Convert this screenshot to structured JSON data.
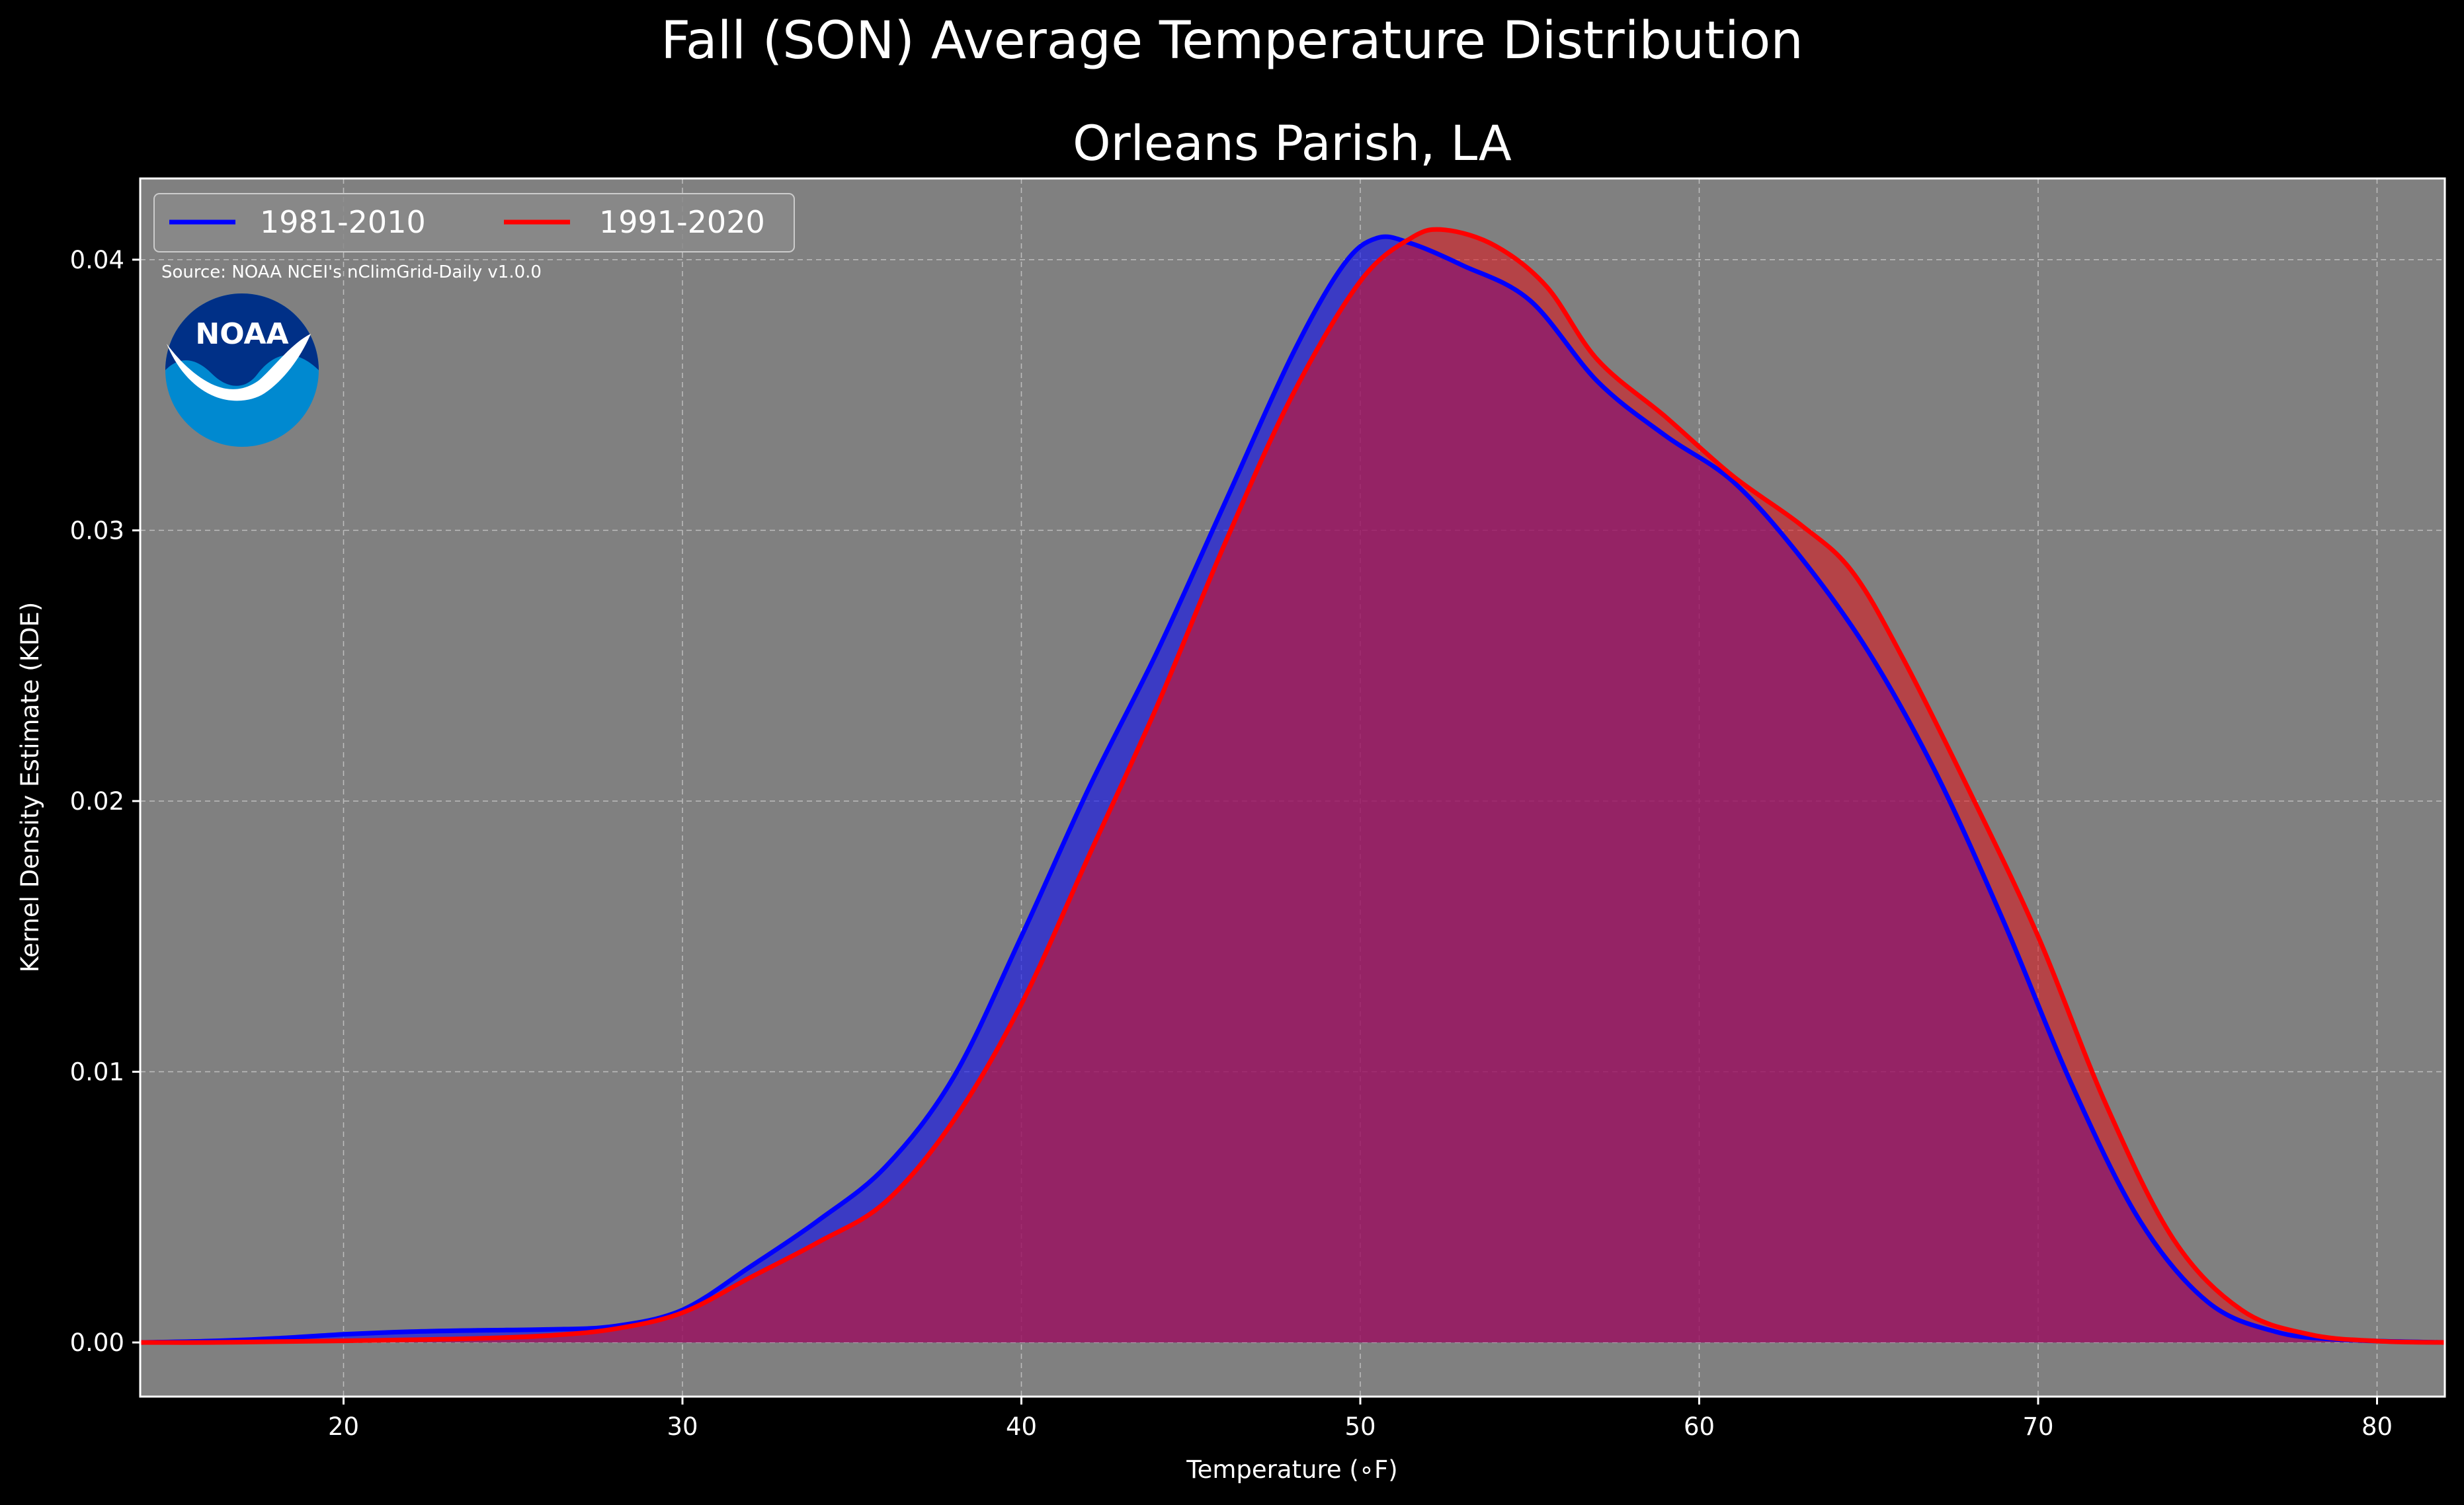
{
  "figure": {
    "suptitle": "Fall (SON) Average Temperature Distribution",
    "source_note": "Source: NOAA NCEI's nClimGrid-Daily v1.0.0",
    "logo_text": "NOAA"
  },
  "chart_data": {
    "type": "area",
    "title": "Orleans Parish, LA",
    "xlabel": "Temperature ($^\\circ$F)",
    "xlabel_display": "Temperature (∘F)",
    "ylabel": "Kernel Density Estimate (KDE)",
    "xlim": [
      14,
      82
    ],
    "ylim": [
      -0.002,
      0.043
    ],
    "x_ticks": [
      20,
      30,
      40,
      50,
      60,
      70,
      80
    ],
    "x_tick_labels": [
      "20",
      "30",
      "40",
      "50",
      "60",
      "70",
      "80"
    ],
    "y_ticks": [
      0.0,
      0.01,
      0.02,
      0.03,
      0.04
    ],
    "y_tick_labels": [
      "0.00",
      "0.01",
      "0.02",
      "0.03",
      "0.04"
    ],
    "grid": true,
    "legend_position": "top-left",
    "plot_background": "#808080",
    "figure_background": "#000000",
    "series": [
      {
        "name": "1981-2010",
        "color": "#0000ff",
        "fill_color": "#3c3cd0",
        "points": [
          [
            14,
            0.0
          ],
          [
            16,
            5e-05
          ],
          [
            18,
            0.00015
          ],
          [
            20,
            0.0003
          ],
          [
            22,
            0.0004
          ],
          [
            24,
            0.00045
          ],
          [
            26,
            0.00048
          ],
          [
            28,
            0.0006
          ],
          [
            30,
            0.0012
          ],
          [
            32,
            0.0028
          ],
          [
            34,
            0.0045
          ],
          [
            36,
            0.0065
          ],
          [
            38,
            0.0098
          ],
          [
            40,
            0.015
          ],
          [
            42,
            0.0205
          ],
          [
            44,
            0.0255
          ],
          [
            46,
            0.031
          ],
          [
            48,
            0.0365
          ],
          [
            49.5,
            0.0398
          ],
          [
            50.5,
            0.0408
          ],
          [
            51.5,
            0.0406
          ],
          [
            53,
            0.0398
          ],
          [
            55,
            0.0385
          ],
          [
            57,
            0.0355
          ],
          [
            59,
            0.0335
          ],
          [
            61,
            0.0318
          ],
          [
            63,
            0.029
          ],
          [
            65,
            0.0255
          ],
          [
            67,
            0.021
          ],
          [
            69,
            0.0155
          ],
          [
            71,
            0.0095
          ],
          [
            73,
            0.0045
          ],
          [
            75,
            0.0015
          ],
          [
            77,
            0.0004
          ],
          [
            79,
            0.0001
          ],
          [
            82,
            0.0
          ]
        ]
      },
      {
        "name": "1991-2020",
        "color": "#ff0000",
        "fill_color": "#c03038",
        "points": [
          [
            14,
            0.0
          ],
          [
            16,
            0.0
          ],
          [
            18,
            3e-05
          ],
          [
            20,
            6e-05
          ],
          [
            22,
            0.0001
          ],
          [
            24,
            0.00015
          ],
          [
            26,
            0.00025
          ],
          [
            28,
            0.0005
          ],
          [
            30,
            0.0011
          ],
          [
            32,
            0.0024
          ],
          [
            34,
            0.0037
          ],
          [
            36,
            0.0052
          ],
          [
            38,
            0.0082
          ],
          [
            40,
            0.0125
          ],
          [
            42,
            0.018
          ],
          [
            44,
            0.0235
          ],
          [
            46,
            0.0295
          ],
          [
            48,
            0.035
          ],
          [
            50,
            0.0392
          ],
          [
            51.5,
            0.0408
          ],
          [
            52.5,
            0.0411
          ],
          [
            54,
            0.0405
          ],
          [
            55.5,
            0.039
          ],
          [
            57,
            0.0363
          ],
          [
            59,
            0.0342
          ],
          [
            61,
            0.032
          ],
          [
            63,
            0.0302
          ],
          [
            64.5,
            0.0285
          ],
          [
            66,
            0.0253
          ],
          [
            68,
            0.0203
          ],
          [
            70,
            0.015
          ],
          [
            72,
            0.0088
          ],
          [
            74,
            0.0038
          ],
          [
            76,
            0.0012
          ],
          [
            78,
            0.0003
          ],
          [
            80,
            5e-05
          ],
          [
            82,
            0.0
          ]
        ]
      }
    ],
    "overlap_color": "#9e1f5f"
  }
}
